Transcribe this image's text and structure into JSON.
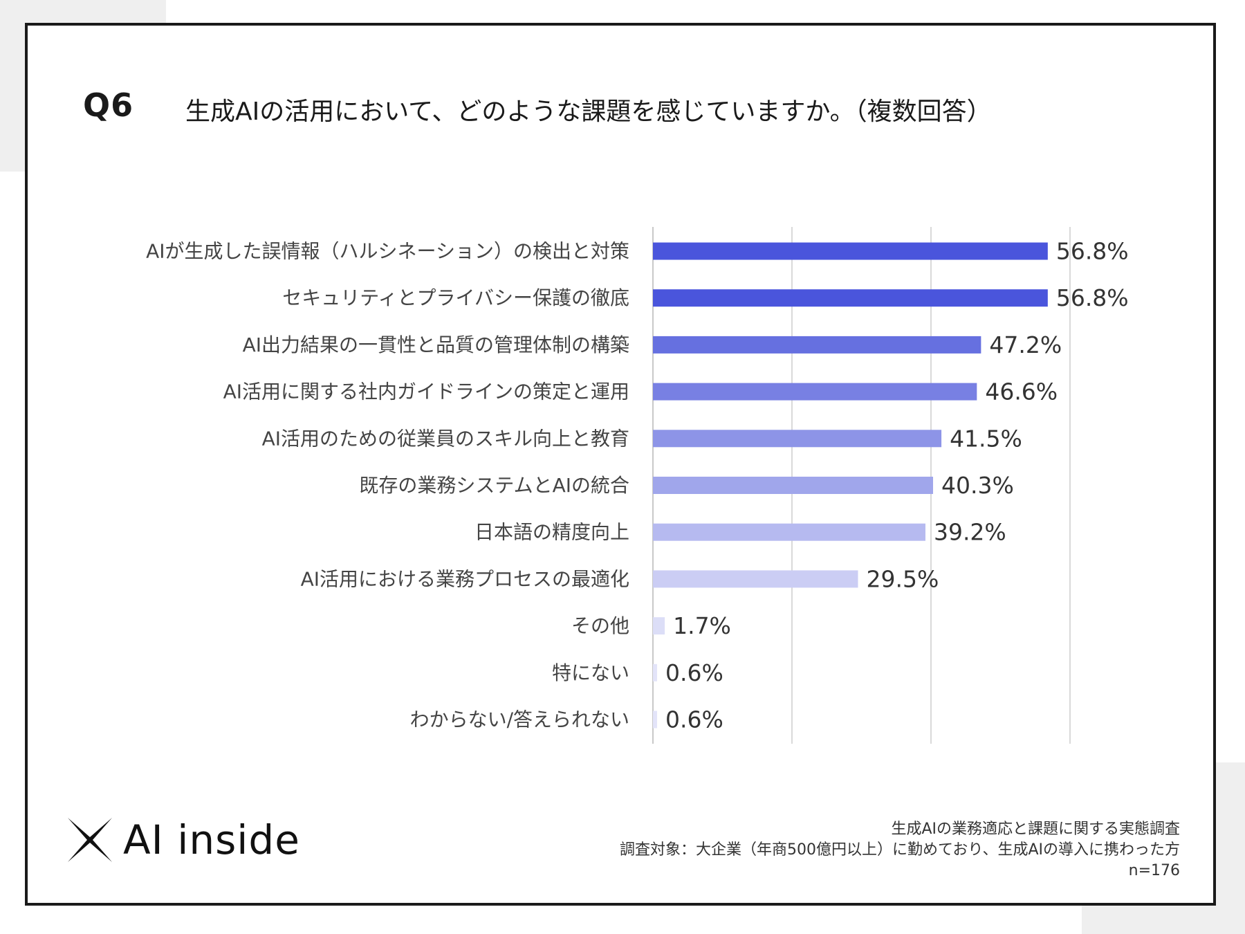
{
  "header": {
    "question_number": "Q6",
    "question_title": "生成AIの活用において、どのような課題を感じていますか。（複数回答）"
  },
  "chart_data": {
    "type": "bar",
    "orientation": "horizontal",
    "title": "生成AIの活用において、どのような課題を感じていますか。（複数回答）",
    "categories": [
      "AIが生成した誤情報（ハルシネーション）の検出と対策",
      "セキュリティとプライバシー保護の徹底",
      "AI出力結果の一貫性と品質の管理体制の構築",
      "AI活用に関する社内ガイドラインの策定と運用",
      "AI活用のための従業員のスキル向上と教育",
      "既存の業務システムとAIの統合",
      "日本語の精度向上",
      "AI活用における業務プロセスの最適化",
      "その他",
      "特にない",
      "わからない/答えられない"
    ],
    "values": [
      56.8,
      56.8,
      47.2,
      46.6,
      41.5,
      40.3,
      39.2,
      29.5,
      1.7,
      0.6,
      0.6
    ],
    "value_labels": [
      "56.8%",
      "56.8%",
      "47.2%",
      "46.6%",
      "41.5%",
      "40.3%",
      "39.2%",
      "29.5%",
      "1.7%",
      "0.6%",
      "0.6%"
    ],
    "bar_colors": [
      "#4a55dc",
      "#4a55dc",
      "#6670e0",
      "#7880e3",
      "#8d94e7",
      "#a0a6eb",
      "#b6baf0",
      "#cbcdf4",
      "#dcdef7",
      "#e3e4f9",
      "#e3e4f9"
    ],
    "xlim": [
      0,
      60
    ],
    "gridlines": [
      0,
      20,
      40,
      60
    ],
    "unit": "%",
    "xlabel": "",
    "ylabel": ""
  },
  "logo": {
    "text": "AI inside"
  },
  "footer": {
    "line1": "生成AIの業務適応と課題に関する実態調査",
    "line2": "調査対象：大企業（年商500億円以上）に勤めており、生成AIの導入に携わった方",
    "line3": "n=176"
  }
}
